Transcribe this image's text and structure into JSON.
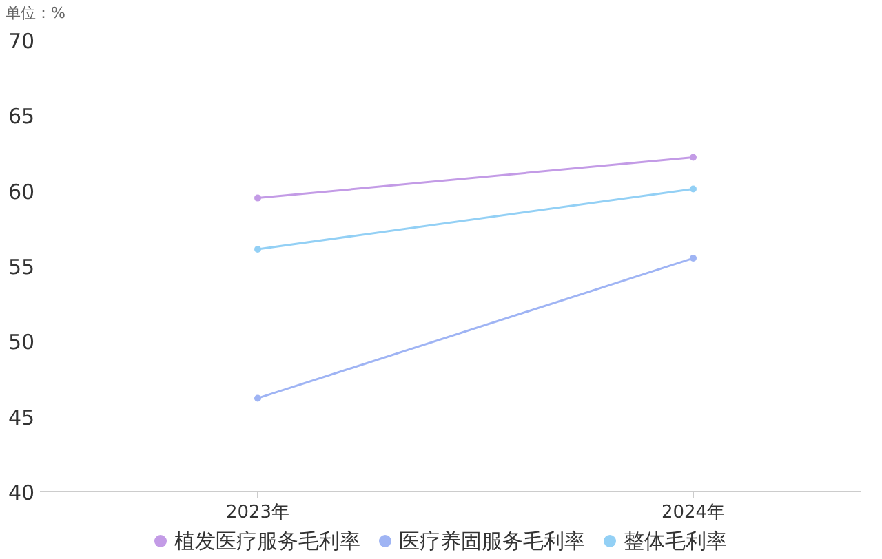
{
  "chart_data": {
    "type": "line",
    "ylabel": "单位：%",
    "categories": [
      "2023年",
      "2024年"
    ],
    "series": [
      {
        "name": "植发医疗服务毛利率",
        "color": "#c39be6",
        "values": [
          59.5,
          62.2
        ]
      },
      {
        "name": "医疗养固服务毛利率",
        "color": "#9fb4f4",
        "values": [
          46.2,
          55.5
        ]
      },
      {
        "name": "整体毛利率",
        "color": "#93d0f5",
        "values": [
          56.1,
          60.1
        ]
      }
    ],
    "ylim": [
      40,
      70
    ],
    "yticks": [
      40,
      45,
      50,
      55,
      60,
      65,
      70
    ],
    "legend": "bottom",
    "marker": "circle",
    "line_style": "solid",
    "grid": false
  }
}
